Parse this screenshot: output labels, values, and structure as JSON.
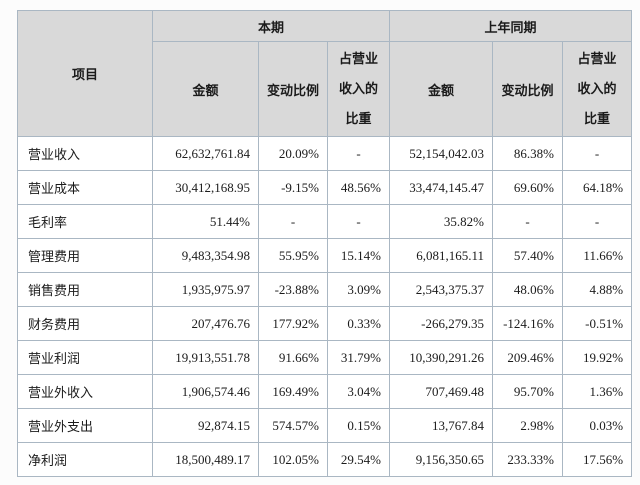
{
  "table": {
    "item_header": "项目",
    "current": {
      "label": "本期",
      "amount": "金额",
      "change": "变动比例",
      "share": "占营业\n收入的\n比重"
    },
    "previous": {
      "label": "上年同期",
      "amount": "金额",
      "change": "变动比例",
      "share": "占营业\n收入的\n比重"
    },
    "rows": [
      {
        "item": "营业收入",
        "cur_amount": "62,632,761.84",
        "cur_change": "20.09%",
        "cur_share": "-",
        "prev_amount": "52,154,042.03",
        "prev_change": "86.38%",
        "prev_share": "-"
      },
      {
        "item": "营业成本",
        "cur_amount": "30,412,168.95",
        "cur_change": "-9.15%",
        "cur_share": "48.56%",
        "prev_amount": "33,474,145.47",
        "prev_change": "69.60%",
        "prev_share": "64.18%"
      },
      {
        "item": "毛利率",
        "cur_amount": "51.44%",
        "cur_change": "-",
        "cur_share": "-",
        "prev_amount": "35.82%",
        "prev_change": "-",
        "prev_share": "-"
      },
      {
        "item": "管理费用",
        "cur_amount": "9,483,354.98",
        "cur_change": "55.95%",
        "cur_share": "15.14%",
        "prev_amount": "6,081,165.11",
        "prev_change": "57.40%",
        "prev_share": "11.66%"
      },
      {
        "item": "销售费用",
        "cur_amount": "1,935,975.97",
        "cur_change": "-23.88%",
        "cur_share": "3.09%",
        "prev_amount": "2,543,375.37",
        "prev_change": "48.06%",
        "prev_share": "4.88%"
      },
      {
        "item": "财务费用",
        "cur_amount": "207,476.76",
        "cur_change": "177.92%",
        "cur_share": "0.33%",
        "prev_amount": "-266,279.35",
        "prev_change": "-124.16%",
        "prev_share": "-0.51%"
      },
      {
        "item": "营业利润",
        "cur_amount": "19,913,551.78",
        "cur_change": "91.66%",
        "cur_share": "31.79%",
        "prev_amount": "10,390,291.26",
        "prev_change": "209.46%",
        "prev_share": "19.92%"
      },
      {
        "item": "营业外收入",
        "cur_amount": "1,906,574.46",
        "cur_change": "169.49%",
        "cur_share": "3.04%",
        "prev_amount": "707,469.48",
        "prev_change": "95.70%",
        "prev_share": "1.36%"
      },
      {
        "item": "营业外支出",
        "cur_amount": "92,874.15",
        "cur_change": "574.57%",
        "cur_share": "0.15%",
        "prev_amount": "13,767.84",
        "prev_change": "2.98%",
        "prev_share": "0.03%"
      },
      {
        "item": "净利润",
        "cur_amount": "18,500,489.17",
        "cur_change": "102.05%",
        "cur_share": "29.54%",
        "prev_amount": "9,156,350.65",
        "prev_change": "233.33%",
        "prev_share": "17.56%"
      }
    ]
  },
  "colors": {
    "border": "#aab7c3",
    "header_bg": "#d9d9d9",
    "cell_bg": "#ffffff",
    "page_bg": "#fcfcfc",
    "text": "#1b1b1b"
  }
}
